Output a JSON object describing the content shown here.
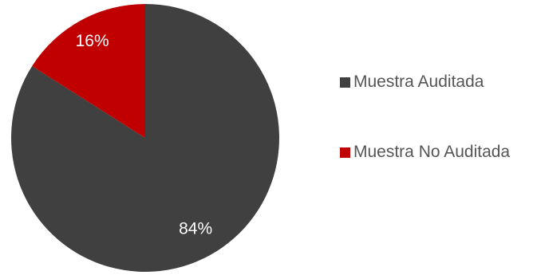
{
  "chart_data": {
    "type": "pie",
    "title": "",
    "slices": [
      {
        "label": "Muestra Auditada",
        "value": 84,
        "display": "84%",
        "color": "#404040",
        "label_color": "#ffffff"
      },
      {
        "label": "Muestra No Auditada",
        "value": 16,
        "display": "16%",
        "color": "#c00000",
        "label_color": "#ffffff"
      }
    ],
    "legend_position": "right",
    "start_angle": "top, clockwise, Muestra No Auditada drawn counter-clockwise from top"
  }
}
